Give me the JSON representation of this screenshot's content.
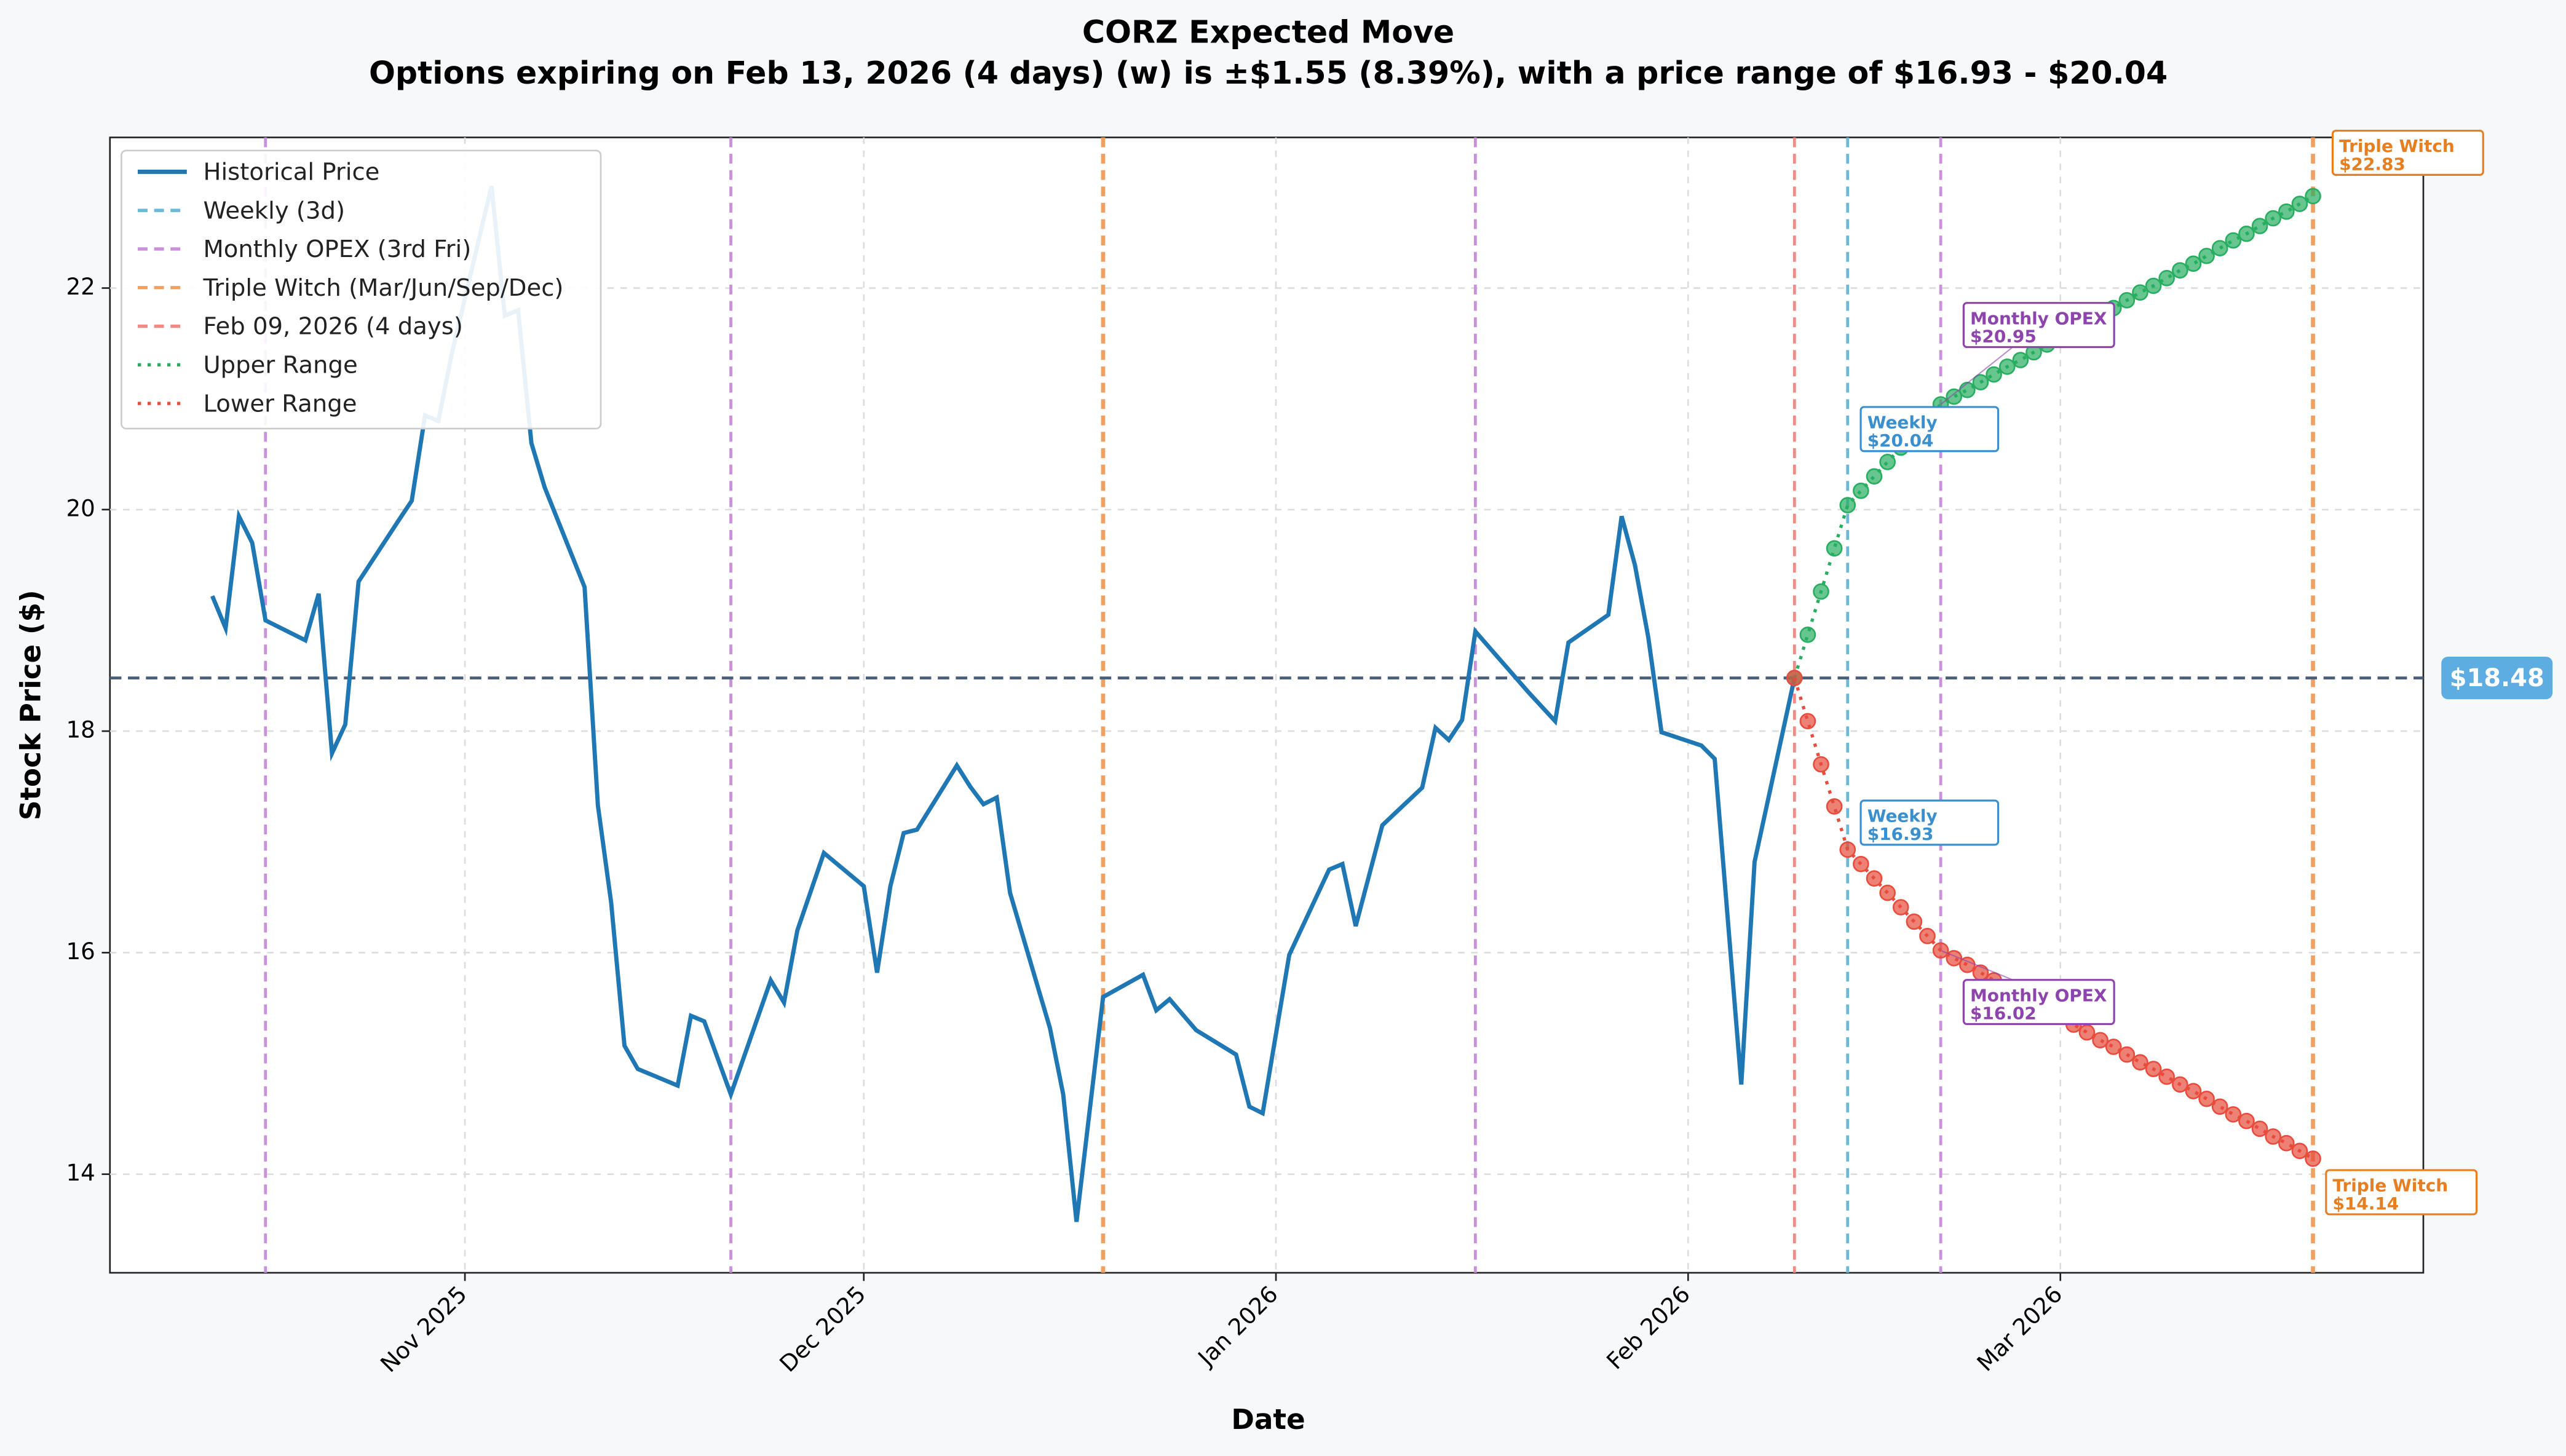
{
  "chart_data": {
    "type": "line",
    "title": "CORZ Expected Move",
    "subtitle": "Options expiring on Feb 13, 2026 (4 days) (w) is ±$1.55 (8.39%), with a price range of $16.93 - $20.04",
    "xlabel": "Date",
    "ylabel": "Stock Price ($)",
    "xlim": [
      4.3,
      178.3
    ],
    "ylim": [
      13.11,
      23.36
    ],
    "xticks": [
      {
        "value": 31,
        "label": "Nov 2025"
      },
      {
        "value": 61,
        "label": "Dec 2025"
      },
      {
        "value": 92,
        "label": "Jan 2026"
      },
      {
        "value": 123,
        "label": "Feb 2026"
      },
      {
        "value": 151,
        "label": "Mar 2026"
      }
    ],
    "yticks": [
      14,
      16,
      18,
      20,
      22
    ],
    "grid": true,
    "legend": "upper left",
    "series": [
      {
        "name": "Historical Price",
        "color": "#1f77b4",
        "style": "solid",
        "x": [
          12,
          13,
          14,
          15,
          16,
          19,
          20,
          21,
          22,
          23,
          26,
          27,
          28,
          29,
          30,
          33,
          34,
          35,
          36,
          37,
          40,
          41,
          42,
          43,
          44,
          47,
          48,
          49,
          51,
          54,
          55,
          56,
          58,
          61,
          62,
          63,
          64,
          65,
          68,
          69,
          70,
          71,
          72,
          75,
          76,
          77,
          79,
          82,
          83,
          84,
          86,
          89,
          90,
          91,
          93,
          96,
          97,
          98,
          100,
          103,
          104,
          105,
          106,
          107,
          111,
          113,
          114,
          117,
          118,
          119,
          120,
          121,
          124,
          125,
          127,
          128,
          131
        ],
        "values": [
          19.22,
          18.93,
          19.94,
          19.7,
          19.0,
          18.82,
          19.24,
          17.8,
          18.06,
          19.35,
          19.9,
          20.08,
          20.85,
          20.8,
          21.4,
          22.92,
          21.75,
          21.8,
          20.6,
          20.2,
          19.3,
          17.33,
          16.45,
          15.16,
          14.95,
          14.8,
          15.43,
          15.38,
          14.72,
          15.75,
          15.55,
          16.2,
          16.9,
          16.6,
          15.82,
          16.6,
          17.08,
          17.11,
          17.69,
          17.5,
          17.34,
          17.4,
          16.54,
          15.32,
          14.72,
          13.57,
          15.6,
          15.8,
          15.48,
          15.58,
          15.3,
          15.08,
          14.61,
          14.55,
          15.98,
          16.75,
          16.8,
          16.24,
          17.15,
          17.49,
          18.03,
          17.92,
          18.1,
          18.9,
          18.35,
          18.09,
          18.8,
          19.05,
          19.94,
          19.5,
          18.85,
          17.99,
          17.87,
          17.75,
          14.81,
          16.82,
          18.48
        ]
      },
      {
        "name": "Upper Range",
        "color": "#27ae60",
        "style": "dotted",
        "markers": true,
        "x": [
          131,
          132,
          133,
          134,
          135,
          136,
          137,
          138,
          139,
          140,
          141,
          142,
          143,
          144,
          145,
          146,
          147,
          148,
          149,
          150,
          151,
          152,
          153,
          154,
          155,
          156,
          157,
          158,
          159,
          160,
          161,
          162,
          163,
          164,
          165,
          166,
          167,
          168,
          169,
          170
        ],
        "values": [
          18.48,
          18.87,
          19.26,
          19.65,
          20.04,
          20.17,
          20.3,
          20.43,
          20.56,
          20.69,
          20.82,
          20.95,
          21.02,
          21.08,
          21.15,
          21.22,
          21.29,
          21.35,
          21.42,
          21.49,
          21.55,
          21.62,
          21.69,
          21.76,
          21.82,
          21.89,
          21.96,
          22.02,
          22.09,
          22.16,
          22.22,
          22.29,
          22.36,
          22.43,
          22.49,
          22.56,
          22.63,
          22.69,
          22.76,
          22.83
        ]
      },
      {
        "name": "Lower Range",
        "color": "#e74c3c",
        "style": "dotted",
        "markers": true,
        "x": [
          131,
          132,
          133,
          134,
          135,
          136,
          137,
          138,
          139,
          140,
          141,
          142,
          143,
          144,
          145,
          146,
          147,
          148,
          149,
          150,
          151,
          152,
          153,
          154,
          155,
          156,
          157,
          158,
          159,
          160,
          161,
          162,
          163,
          164,
          165,
          166,
          167,
          168,
          169,
          170
        ],
        "values": [
          18.48,
          18.09,
          17.7,
          17.32,
          16.93,
          16.8,
          16.67,
          16.54,
          16.41,
          16.28,
          16.15,
          16.02,
          15.95,
          15.89,
          15.82,
          15.75,
          15.68,
          15.62,
          15.55,
          15.48,
          15.42,
          15.35,
          15.28,
          15.21,
          15.15,
          15.08,
          15.01,
          14.95,
          14.88,
          14.81,
          14.75,
          14.68,
          14.61,
          14.54,
          14.48,
          14.41,
          14.34,
          14.28,
          14.21,
          14.14
        ]
      }
    ],
    "vlines": [
      {
        "name": "Weekly (3d)",
        "color": "#6bb8d8",
        "style": "dashed",
        "x": [
          135
        ]
      },
      {
        "name": "Monthly OPEX (3rd Fri)",
        "color": "#c990db",
        "style": "dashed",
        "x": [
          16,
          51,
          107,
          142
        ]
      },
      {
        "name": "Triple Witch (Mar/Jun/Sep/Dec)",
        "color": "#f0a060",
        "style": "dashed",
        "x": [
          79,
          170
        ]
      },
      {
        "name": "Feb 09, 2026 (4 days)",
        "color": "#f08a84",
        "style": "dashed",
        "x": [
          131
        ]
      }
    ],
    "hline": {
      "value": 18.48,
      "label": "$18.48",
      "color": "#4a5f7a"
    },
    "annotations": [
      {
        "label": "Weekly",
        "x": 135,
        "value": 20.04,
        "value_label": "$20.04",
        "color": "#3a8fcf"
      },
      {
        "label": "Weekly",
        "x": 135,
        "value": 16.93,
        "value_label": "$16.93",
        "color": "#3a8fcf"
      },
      {
        "label": "Monthly OPEX",
        "x": 142,
        "value": 20.95,
        "value_label": "$20.95",
        "color": "#8e44ad"
      },
      {
        "label": "Monthly OPEX",
        "x": 142,
        "value": 16.02,
        "value_label": "$16.02",
        "color": "#8e44ad"
      },
      {
        "label": "Triple Witch",
        "x": 170,
        "value": 22.83,
        "value_label": "$22.83",
        "color": "#e67e22"
      },
      {
        "label": "Triple Witch",
        "x": 170,
        "value": 14.14,
        "value_label": "$14.14",
        "color": "#e67e22"
      }
    ]
  }
}
